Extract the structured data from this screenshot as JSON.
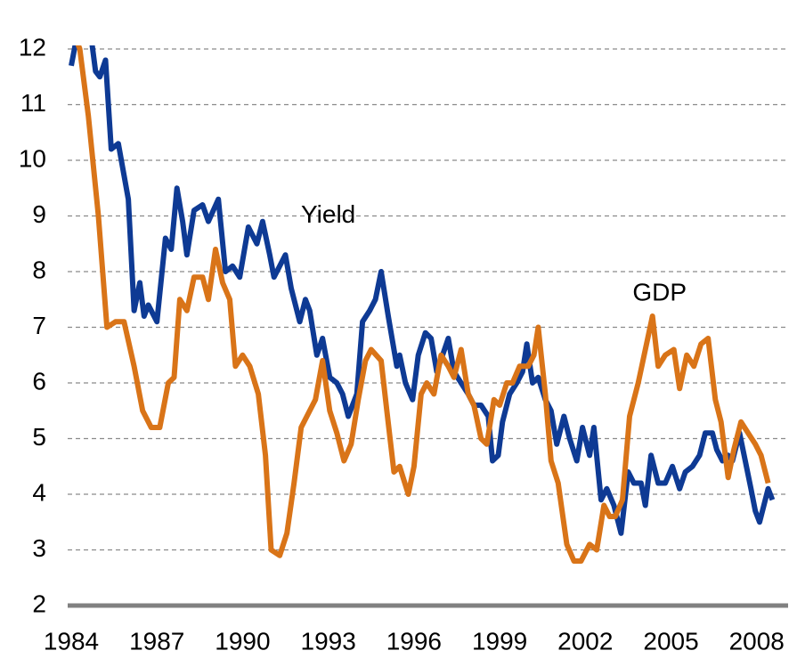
{
  "chart_data": {
    "type": "line",
    "xlim": [
      1984,
      2008.6
    ],
    "xticks": [
      1984,
      1987,
      1990,
      1993,
      1996,
      1999,
      2002,
      2005,
      2008
    ],
    "ylim": [
      2,
      12
    ],
    "yticks": [
      2,
      3,
      4,
      5,
      6,
      7,
      8,
      9,
      10,
      11,
      12
    ],
    "grid": true,
    "annotations": [
      {
        "text": "Yield",
        "x": 1993.0,
        "y": 9.0
      },
      {
        "text": "GDP",
        "x": 2004.6,
        "y": 7.6
      }
    ],
    "series": [
      {
        "name": "Yield",
        "color": "#0e3a94",
        "x": [
          1984.0,
          1984.15,
          1984.6,
          1984.85,
          1985.0,
          1985.2,
          1985.4,
          1985.65,
          1986.0,
          1986.2,
          1986.4,
          1986.55,
          1986.7,
          1987.0,
          1987.3,
          1987.5,
          1987.7,
          1987.9,
          1988.05,
          1988.3,
          1988.6,
          1988.8,
          1989.15,
          1989.4,
          1989.65,
          1989.9,
          1990.2,
          1990.5,
          1990.7,
          1990.95,
          1991.1,
          1991.3,
          1991.5,
          1991.7,
          1992.0,
          1992.2,
          1992.35,
          1992.6,
          1992.8,
          1993.05,
          1993.3,
          1993.5,
          1993.7,
          1994.0,
          1994.2,
          1994.45,
          1994.65,
          1994.85,
          1995.1,
          1995.4,
          1995.5,
          1995.7,
          1995.95,
          1996.15,
          1996.4,
          1996.6,
          1996.8,
          1997.0,
          1997.2,
          1997.4,
          1997.65,
          1997.9,
          1998.1,
          1998.35,
          1998.6,
          1998.75,
          1998.95,
          1999.1,
          1999.35,
          1999.6,
          1999.8,
          1999.95,
          2000.15,
          2000.35,
          2000.6,
          2000.8,
          2001.0,
          2001.25,
          2001.45,
          2001.7,
          2001.9,
          2002.15,
          2002.3,
          2002.55,
          2002.75,
          2003.0,
          2003.25,
          2003.5,
          2003.7,
          2003.95,
          2004.1,
          2004.3,
          2004.55,
          2004.8,
          2005.05,
          2005.3,
          2005.5,
          2005.75,
          2006.0,
          2006.2,
          2006.45,
          2006.6,
          2006.8,
          2007.0,
          2007.15,
          2007.4,
          2007.6,
          2007.8,
          2007.95,
          2008.1,
          2008.25,
          2008.4,
          2008.55
        ],
        "values": [
          11.7,
          12.1,
          12.6,
          11.6,
          11.5,
          11.8,
          10.2,
          10.3,
          9.3,
          7.3,
          7.8,
          7.2,
          7.4,
          7.1,
          8.6,
          8.4,
          9.5,
          8.9,
          8.3,
          9.1,
          9.2,
          8.9,
          9.3,
          8.0,
          8.1,
          7.9,
          8.8,
          8.5,
          8.9,
          8.3,
          7.9,
          8.1,
          8.3,
          7.7,
          7.1,
          7.5,
          7.3,
          6.5,
          6.8,
          6.1,
          6.0,
          5.8,
          5.4,
          5.8,
          7.1,
          7.3,
          7.5,
          8.0,
          7.2,
          6.3,
          6.5,
          6.0,
          5.7,
          6.5,
          6.9,
          6.8,
          6.2,
          6.5,
          6.8,
          6.2,
          6.0,
          5.8,
          5.6,
          5.6,
          5.4,
          4.6,
          4.7,
          5.3,
          5.8,
          6.0,
          6.2,
          6.7,
          6.0,
          6.1,
          5.7,
          5.5,
          4.9,
          5.4,
          5.0,
          4.6,
          5.2,
          4.7,
          5.2,
          3.9,
          4.1,
          3.8,
          3.3,
          4.4,
          4.2,
          4.2,
          3.8,
          4.7,
          4.2,
          4.2,
          4.5,
          4.1,
          4.4,
          4.5,
          4.7,
          5.1,
          5.1,
          4.8,
          4.6,
          4.7,
          4.6,
          5.1,
          4.6,
          4.1,
          3.7,
          3.5,
          3.8,
          4.1,
          3.9
        ]
      },
      {
        "name": "GDP",
        "color": "#d97418",
        "x": [
          1984.0,
          1984.3,
          1984.6,
          1984.95,
          1985.25,
          1985.55,
          1985.85,
          1986.2,
          1986.5,
          1986.8,
          1987.1,
          1987.4,
          1987.6,
          1987.8,
          1988.05,
          1988.3,
          1988.6,
          1988.8,
          1989.05,
          1989.3,
          1989.55,
          1989.75,
          1990.0,
          1990.25,
          1990.55,
          1990.8,
          1991.0,
          1991.3,
          1991.55,
          1991.8,
          1992.05,
          1992.25,
          1992.55,
          1992.8,
          1993.05,
          1993.3,
          1993.55,
          1993.8,
          1994.05,
          1994.3,
          1994.5,
          1994.85,
          1995.05,
          1995.3,
          1995.5,
          1995.8,
          1996.0,
          1996.25,
          1996.45,
          1996.7,
          1996.95,
          1997.2,
          1997.4,
          1997.65,
          1997.9,
          1998.1,
          1998.35,
          1998.55,
          1998.8,
          1999.0,
          1999.25,
          1999.45,
          1999.7,
          2000.0,
          2000.2,
          2000.35,
          2000.6,
          2000.8,
          2001.05,
          2001.35,
          2001.6,
          2001.85,
          2002.15,
          2002.4,
          2002.65,
          2002.85,
          2003.05,
          2003.3,
          2003.55,
          2003.85,
          2004.1,
          2004.35,
          2004.55,
          2004.8,
          2005.1,
          2005.3,
          2005.55,
          2005.8,
          2006.05,
          2006.3,
          2006.55,
          2006.75,
          2007.0,
          2007.2,
          2007.45,
          2007.7,
          2007.95,
          2008.15,
          2008.4
        ],
        "values": [
          12.4,
          12.0,
          10.8,
          9.0,
          7.0,
          7.1,
          7.1,
          6.3,
          5.5,
          5.2,
          5.2,
          6.0,
          6.1,
          7.5,
          7.3,
          7.9,
          7.9,
          7.5,
          8.4,
          7.8,
          7.5,
          6.3,
          6.5,
          6.3,
          5.8,
          4.7,
          3.0,
          2.9,
          3.3,
          4.2,
          5.2,
          5.4,
          5.7,
          6.4,
          5.5,
          5.1,
          4.6,
          4.9,
          5.7,
          6.4,
          6.6,
          6.4,
          5.5,
          4.4,
          4.5,
          4.0,
          4.5,
          5.8,
          6.0,
          5.8,
          6.5,
          6.3,
          6.1,
          6.6,
          5.8,
          5.6,
          5.0,
          4.9,
          5.7,
          5.6,
          6.0,
          6.0,
          6.3,
          6.3,
          6.5,
          7.0,
          5.8,
          4.6,
          4.2,
          3.1,
          2.8,
          2.8,
          3.1,
          3.0,
          3.8,
          3.6,
          3.6,
          3.9,
          5.4,
          6.0,
          6.6,
          7.2,
          6.3,
          6.5,
          6.6,
          5.9,
          6.5,
          6.3,
          6.7,
          6.8,
          5.7,
          5.3,
          4.3,
          4.8,
          5.3,
          5.1,
          4.9,
          4.7,
          4.2
        ]
      }
    ]
  }
}
